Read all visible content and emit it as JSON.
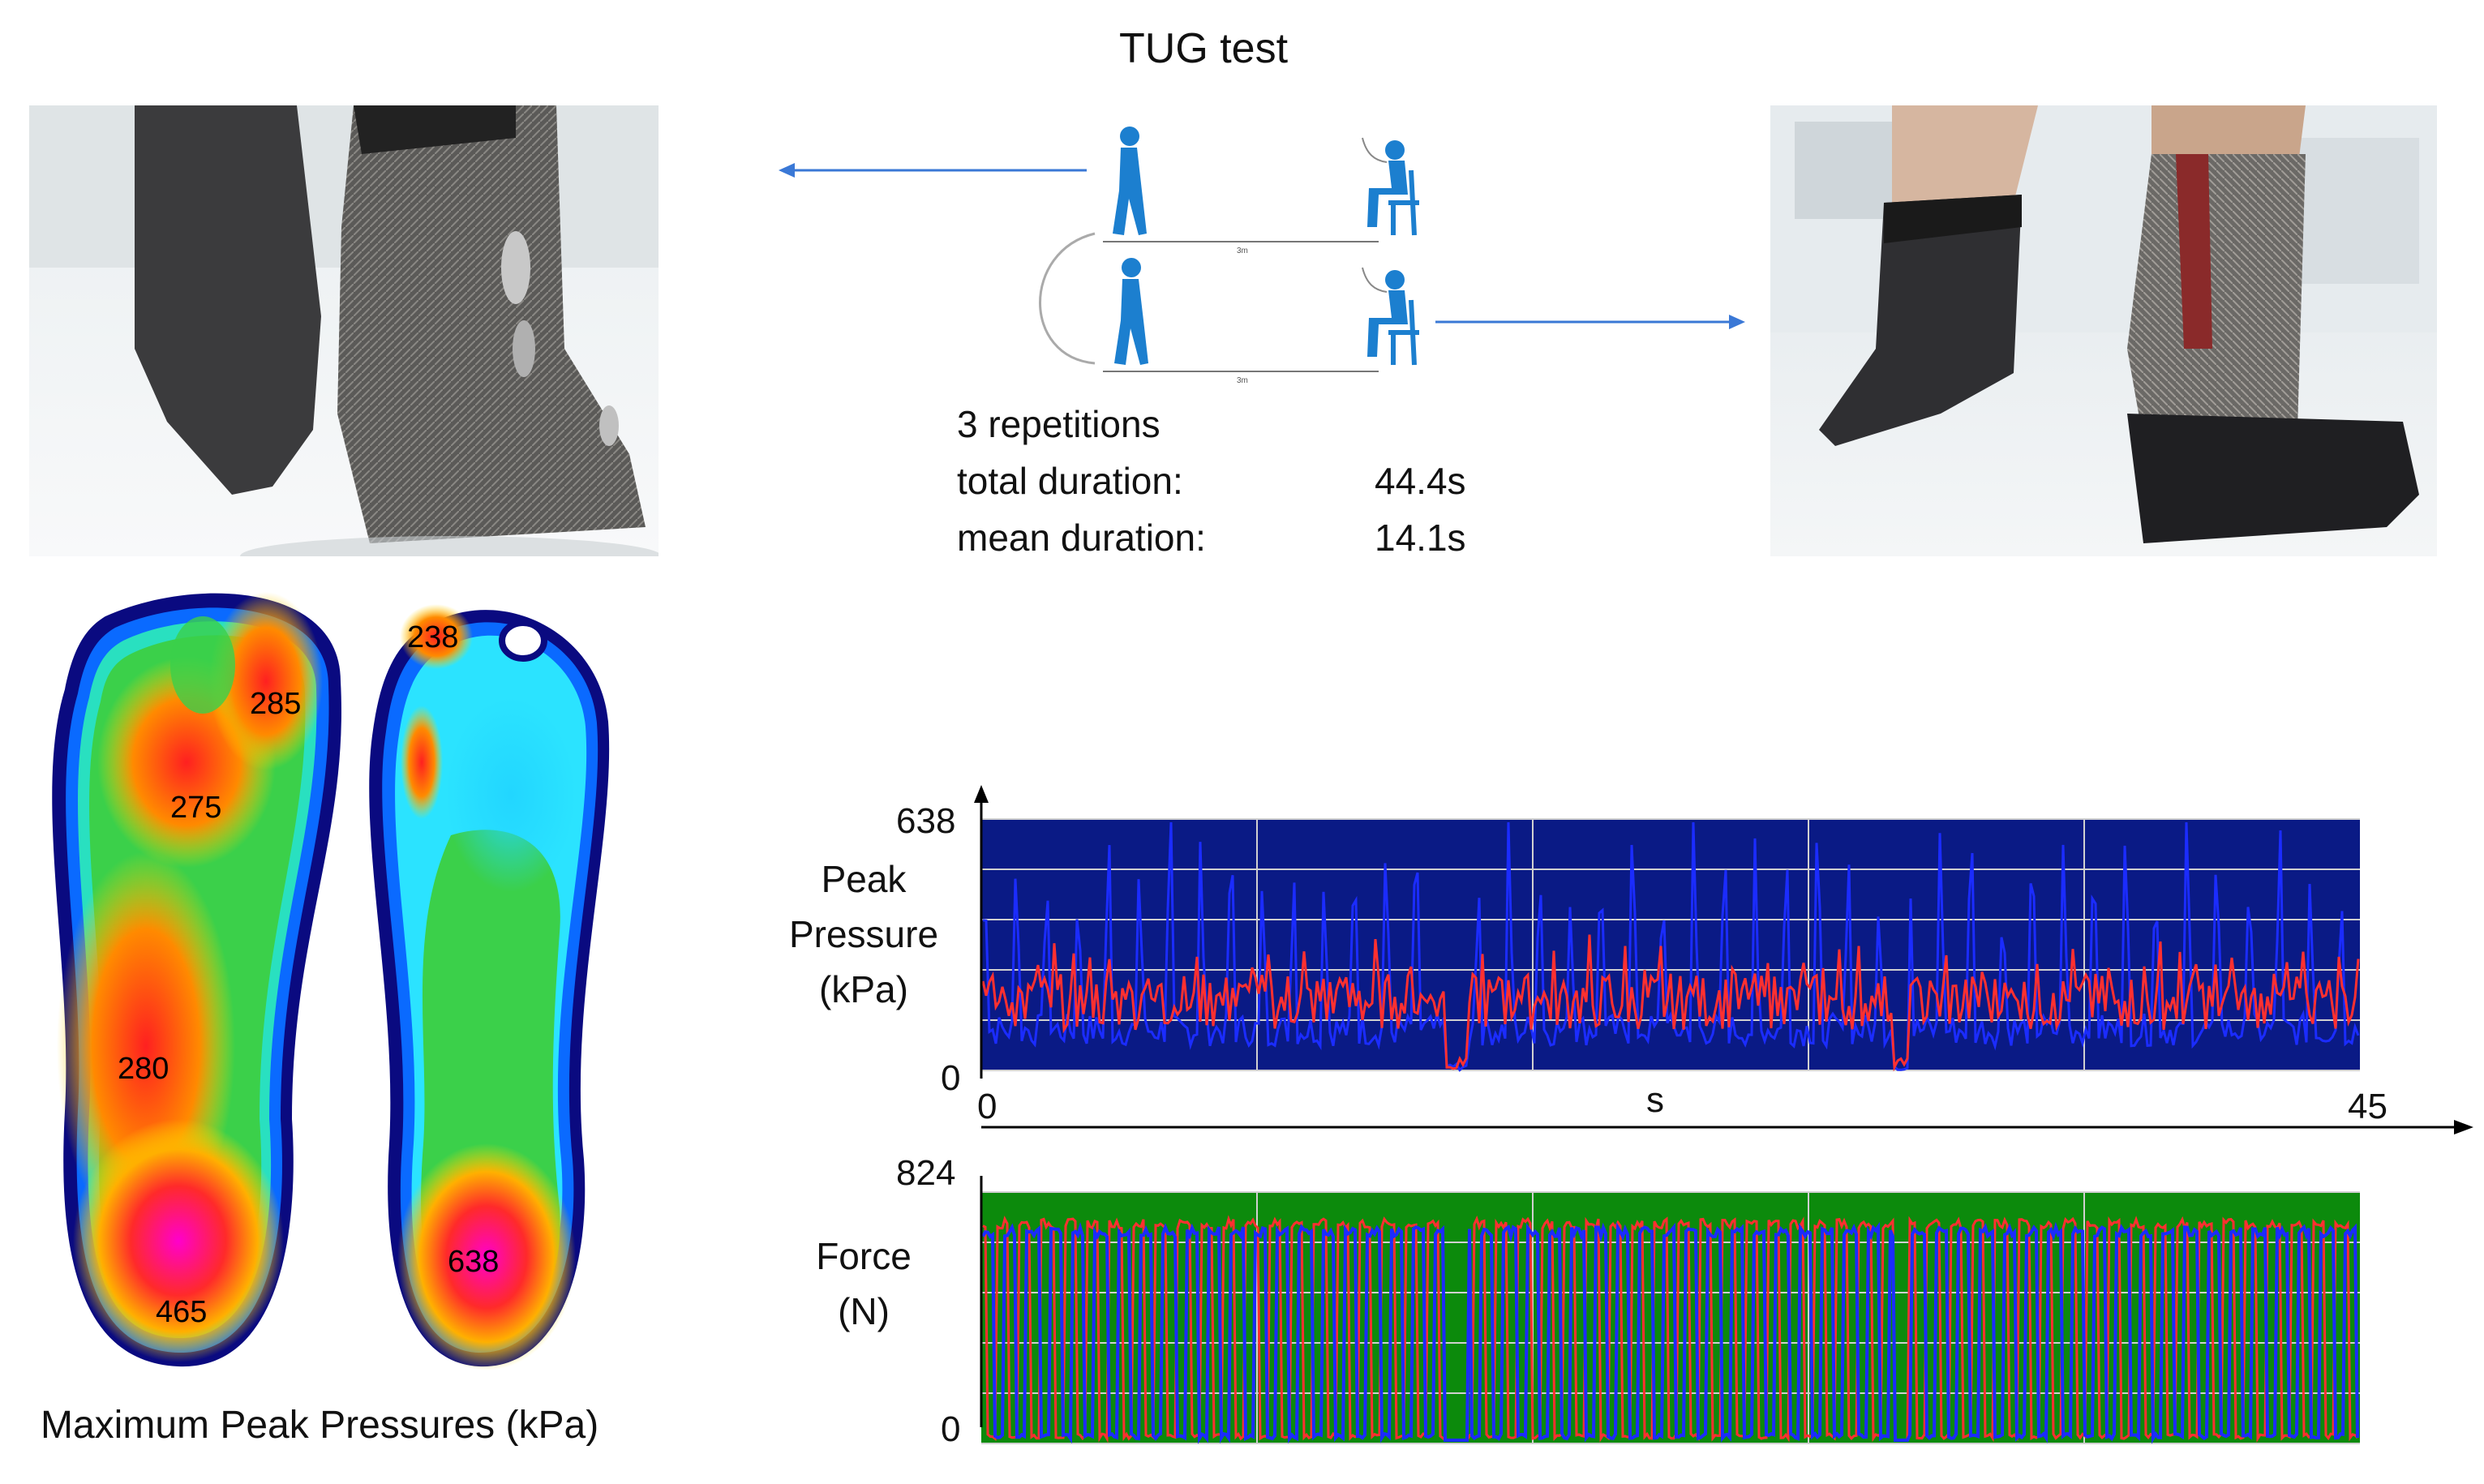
{
  "title": "TUG test",
  "stats": {
    "repetitions": "3 repetitions",
    "total_label": "total duration:",
    "total_value": "44.4s",
    "mean_label": "mean duration:",
    "mean_value": "14.1s"
  },
  "course_label": "3m",
  "pressure_map": {
    "caption": "Maximum Peak Pressures (kPa)",
    "left_values": [
      "285",
      "275",
      "280",
      "465"
    ],
    "right_values": [
      "238",
      "638"
    ]
  },
  "colors": {
    "arrow": "#3a78d6",
    "figure": "#1c7fcf",
    "pressure_bg": "#0a1a85",
    "force_bg": "#0c8a0c",
    "series_left": "#ff3030",
    "series_right": "#1b2cff"
  },
  "chart_data": [
    {
      "type": "line",
      "ylabel": [
        "Peak",
        "Pressure",
        "(kPa)"
      ],
      "ylim": [
        0,
        638
      ],
      "xlim": [
        0,
        45
      ],
      "xlabel": "s",
      "yticks": [
        "638",
        "0"
      ],
      "xticks": [
        "0",
        "45"
      ],
      "grid": true
    },
    {
      "type": "line",
      "ylabel": [
        "Force",
        "(N)"
      ],
      "ylim": [
        0,
        824
      ],
      "xlim": [
        0,
        45
      ],
      "yticks": [
        "824",
        "0"
      ],
      "grid": true
    }
  ]
}
